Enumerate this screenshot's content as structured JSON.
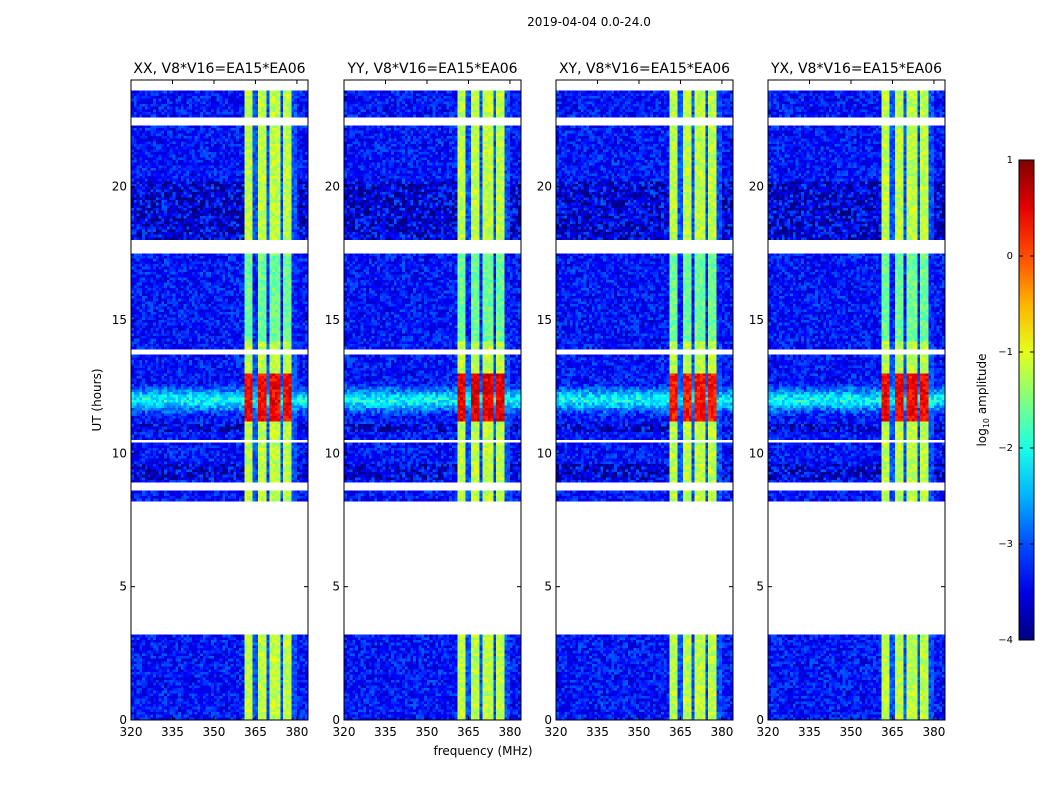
{
  "figure": {
    "suptitle": "2019-04-04 0.0-24.0",
    "ylabel": "UT (hours)",
    "xlabel": "frequency (MHz)"
  },
  "chart_data": {
    "type": "heatmap",
    "title": "2019-04-04 0.0-24.0",
    "xlabel": "frequency (MHz)",
    "ylabel": "UT (hours)",
    "xlim": [
      320,
      384
    ],
    "ylim": [
      0,
      24
    ],
    "xticks": [
      320,
      335,
      350,
      365,
      380
    ],
    "yticks": [
      0,
      5,
      10,
      15,
      20
    ],
    "panels": [
      {
        "title": "XX, V8*V16=EA15*EA06",
        "rfi_core_log10": 0.9
      },
      {
        "title": "YY, V8*V16=EA15*EA06",
        "rfi_core_log10": 1.0
      },
      {
        "title": "XY, V8*V16=EA15*EA06",
        "rfi_core_log10": 0.8
      },
      {
        "title": "YX, V8*V16=EA15*EA06",
        "rfi_core_log10": 0.9
      }
    ],
    "data_gaps_hours": [
      [
        3.2,
        8.2
      ],
      [
        17.5,
        18.0
      ],
      [
        8.6,
        8.9
      ],
      [
        10.4,
        10.55
      ],
      [
        13.7,
        13.9
      ],
      [
        22.3,
        22.6
      ],
      [
        23.6,
        24.0
      ]
    ],
    "rfi_band_mhz": [
      361,
      380
    ],
    "rfi_channels_mhz": [
      365,
      369.5,
      374.5,
      379
    ],
    "strong_rfi_hours": [
      11.2,
      13.0
    ],
    "colorbar": {
      "label": "log10 amplitude",
      "label_main": "log",
      "label_sub": "10",
      "label_rest": " amplitude",
      "range": [
        -4,
        1
      ],
      "ticks": [
        "1",
        "0",
        "−1",
        "−2",
        "−3",
        "−4"
      ],
      "tick_values": [
        1,
        0,
        -1,
        -2,
        -3,
        -4
      ],
      "colormap": "jet"
    }
  }
}
